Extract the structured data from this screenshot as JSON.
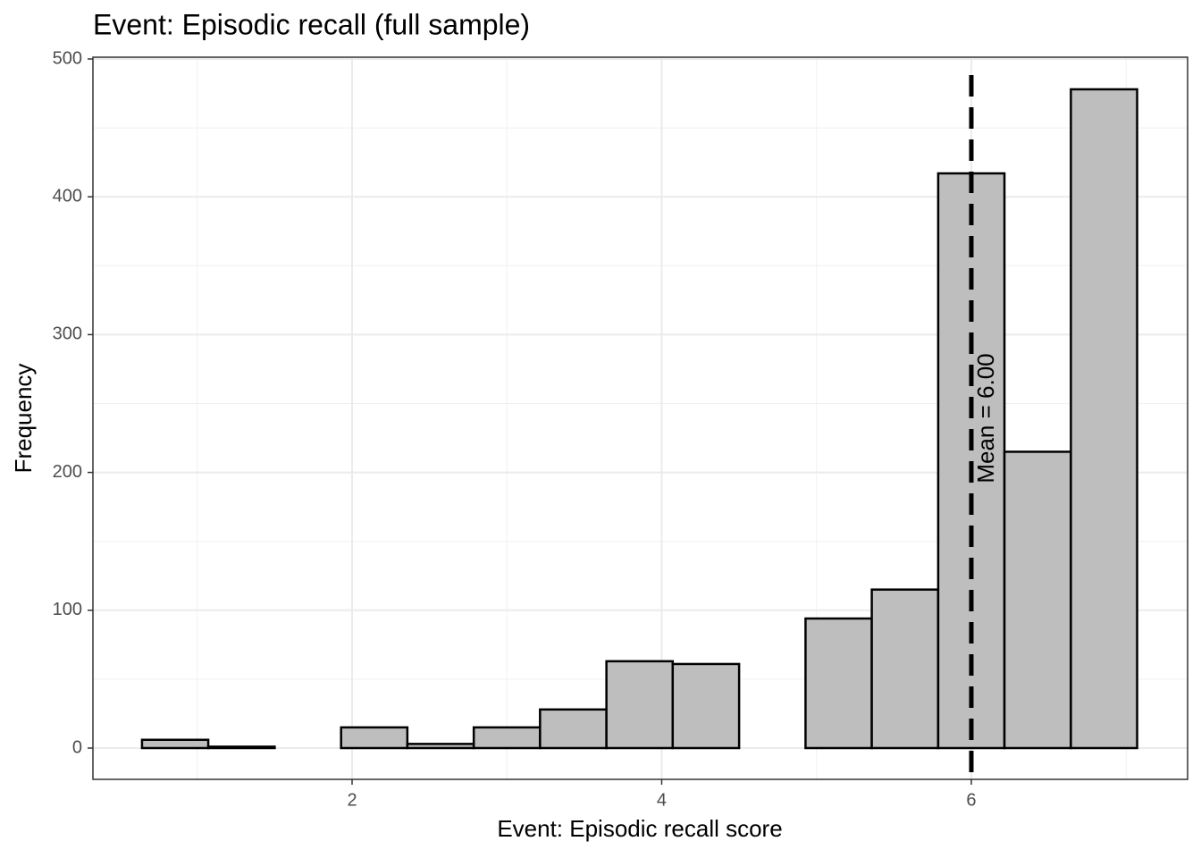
{
  "chart_data": {
    "type": "histogram",
    "title": "Event: Episodic recall (full sample)",
    "x_label": "Event: Episodic recall score",
    "y_label": "Frequency",
    "bins": [
      0.643,
      1.071,
      1.5,
      1.929,
      2.357,
      2.786,
      3.214,
      3.643,
      4.071,
      4.5,
      4.929,
      5.357,
      5.786,
      6.214,
      6.643,
      7.071
    ],
    "values": [
      6,
      1,
      0,
      15,
      3,
      15,
      28,
      63,
      61,
      0,
      94,
      115,
      417,
      215,
      478
    ],
    "color": "#bebebe",
    "edge_color": "#000000",
    "xlim": [
      0.326,
      7.397
    ],
    "ylim": [
      -22.7,
      501.3
    ],
    "xticks": [
      2,
      4,
      6
    ],
    "yticks": [
      0,
      100,
      200,
      300,
      400,
      500
    ],
    "xminor": [
      1,
      3,
      5,
      7
    ],
    "yminor": [
      50,
      150,
      250,
      350,
      450
    ],
    "grid": true,
    "mean": 6,
    "annotation": "Mean = 6.00"
  }
}
